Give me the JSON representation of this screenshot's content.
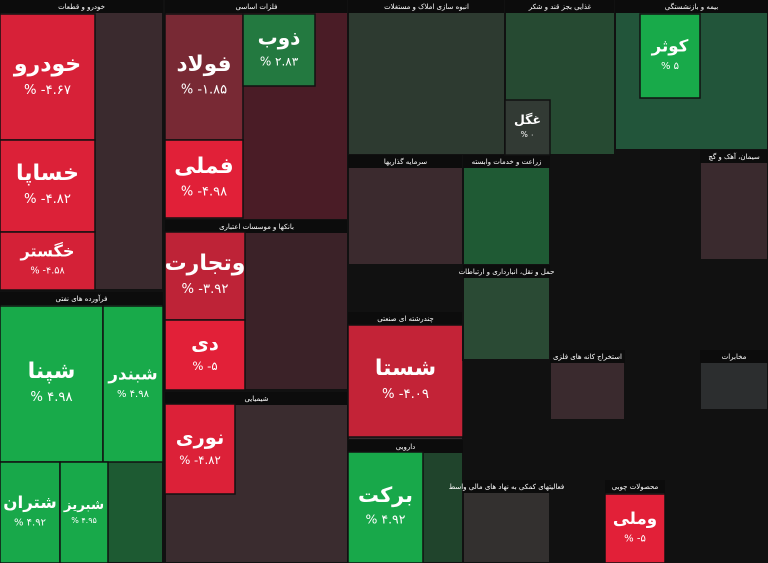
{
  "chart_data": {
    "type": "treemap",
    "groups": [
      {
        "name": "خودرو و قطعات",
        "categories": [
          "خودرو",
          "خساپا",
          "خگستر"
        ],
        "values": [
          -4.67,
          -4.82,
          -4.58
        ],
        "value_labels": [
          "% -۴.۶۷",
          "% -۴.۸۲",
          "% -۴.۵۸"
        ]
      },
      {
        "name": "فرآورده های نفتی",
        "categories": [
          "شپنا",
          "شبندر",
          "شتران",
          "شبریز"
        ],
        "values": [
          4.98,
          4.98,
          4.92,
          4.95
        ],
        "value_labels": [
          "% ۴.۹۸",
          "% ۴.۹۸",
          "% ۴.۹۲",
          "% ۴.۹۵"
        ]
      },
      {
        "name": "فلزات اساسی",
        "categories": [
          "فولاد",
          "ذوب",
          "فملی"
        ],
        "values": [
          -1.85,
          2.83,
          -4.98
        ],
        "value_labels": [
          "% -۱.۸۵",
          "% ۲.۸۳",
          "% -۴.۹۸"
        ]
      },
      {
        "name": "بانکها و موسسات اعتباری",
        "categories": [
          "وتجارت",
          "دی"
        ],
        "values": [
          -3.92,
          -5
        ],
        "value_labels": [
          "% -۳.۹۲",
          "% -۵"
        ]
      },
      {
        "name": "شیمیایی",
        "categories": [
          "نوری"
        ],
        "values": [
          -4.82
        ],
        "value_labels": [
          "% -۴.۸۲"
        ]
      },
      {
        "name": "انبوه سازی املاک و مستغلات",
        "categories": [],
        "values": [],
        "value_labels": []
      },
      {
        "name": "سرمایه گذاریها",
        "categories": [],
        "values": [],
        "value_labels": []
      },
      {
        "name": "چندرشته ای صنعتی",
        "categories": [
          "شستا"
        ],
        "values": [
          -4.09
        ],
        "value_labels": [
          "% -۴.۰۹"
        ]
      },
      {
        "name": "دارویی",
        "categories": [
          "برکت"
        ],
        "values": [
          4.92
        ],
        "value_labels": [
          "% ۴.۹۲"
        ]
      },
      {
        "name": "زراعت و خدمات وابسته",
        "categories": [],
        "values": [],
        "value_labels": []
      },
      {
        "name": "غذایی بجز قند و شکر",
        "categories": [
          "غگل"
        ],
        "values": [
          0
        ],
        "value_labels": [
          "% ۰"
        ]
      },
      {
        "name": "بیمه و بازنشستگی",
        "categories": [
          "کوثر"
        ],
        "values": [
          5
        ],
        "value_labels": [
          "% ۵"
        ]
      },
      {
        "name": "حمل و نقل، انبارداری و ارتباطات",
        "categories": [],
        "values": [],
        "value_labels": []
      },
      {
        "name": "سیمان، آهک و گچ",
        "categories": [],
        "values": [],
        "value_labels": []
      },
      {
        "name": "مخابرات",
        "categories": [],
        "values": [],
        "value_labels": []
      },
      {
        "name": "استخراج کانه های فلزی",
        "categories": [],
        "values": [],
        "value_labels": []
      },
      {
        "name": "فعالیتهای کمکی به نهاد های مالی واسط",
        "categories": [],
        "values": [],
        "value_labels": []
      },
      {
        "name": "محصولات چوبی",
        "categories": [
          "وملی"
        ],
        "values": [
          -5
        ],
        "value_labels": [
          "% -۵"
        ]
      }
    ]
  }
}
